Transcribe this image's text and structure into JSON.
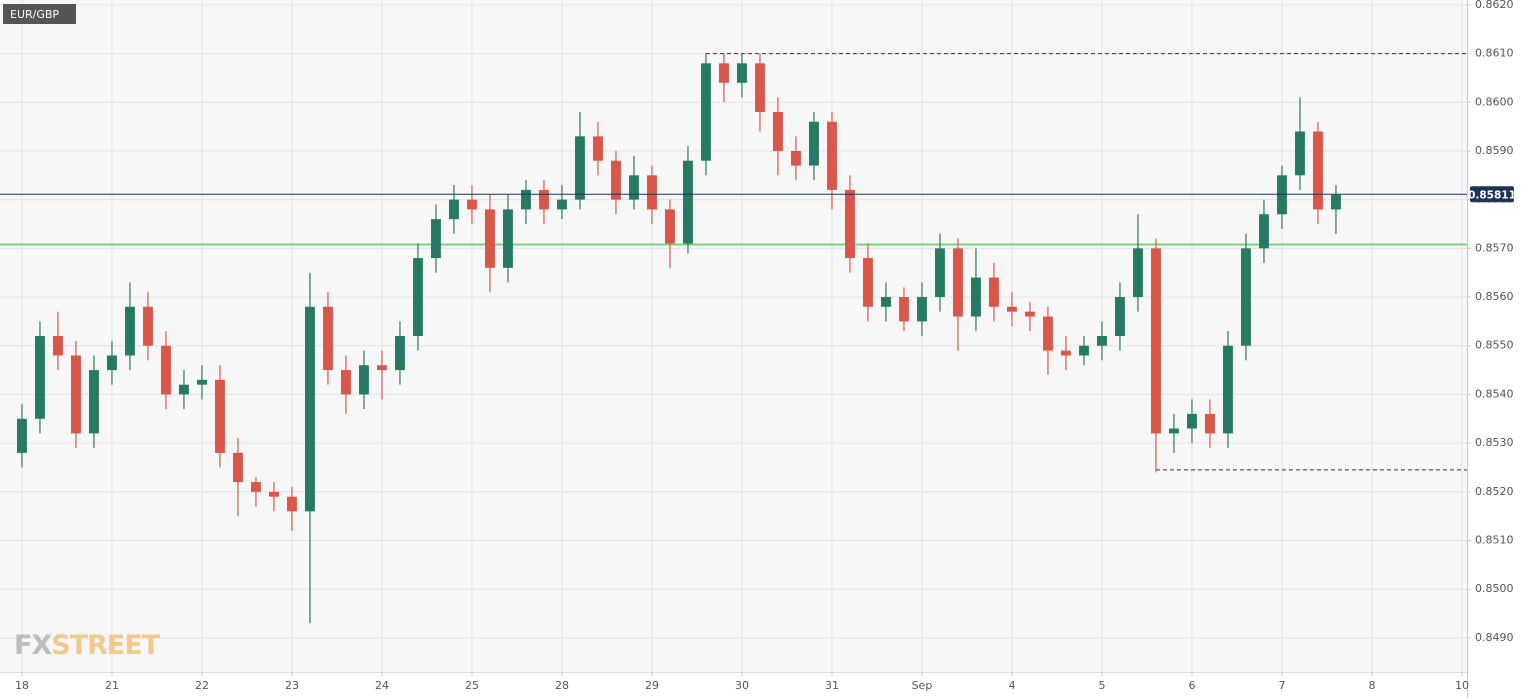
{
  "chart_data": {
    "type": "candlestick",
    "title": "EUR/GBP",
    "watermark": [
      "FX",
      "STREET"
    ],
    "x": [
      0,
      0.2,
      0.4,
      0.6,
      0.8,
      1,
      1.2,
      1.4,
      1.6,
      1.8,
      2,
      2.2,
      2.4,
      2.6,
      2.8,
      3,
      3.2,
      3.4,
      3.6,
      3.8,
      4,
      4.2,
      4.4,
      4.6,
      4.8,
      5,
      5.2,
      5.4,
      5.6,
      5.8,
      6,
      6.2,
      6.4,
      6.6,
      6.8,
      7,
      7.2,
      7.4,
      7.6,
      7.8,
      8,
      8.2,
      8.4,
      8.6,
      8.8,
      9,
      9.2,
      9.4,
      9.6,
      9.8,
      10,
      10.2,
      10.4,
      10.6,
      10.8,
      11,
      11.2,
      11.4,
      11.6,
      11.8,
      12,
      12.2,
      12.4,
      12.6,
      12.8,
      13,
      13.2,
      13.4,
      13.6,
      13.8,
      14,
      14.2,
      14.4,
      14.6
    ],
    "open": [
      0.8528,
      0.8535,
      0.8552,
      0.8548,
      0.8532,
      0.8545,
      0.8548,
      0.8558,
      0.855,
      0.854,
      0.8542,
      0.8543,
      0.8528,
      0.8522,
      0.852,
      0.8519,
      0.8516,
      0.8558,
      0.8545,
      0.854,
      0.8546,
      0.8545,
      0.8552,
      0.8568,
      0.8576,
      0.858,
      0.8578,
      0.8566,
      0.8578,
      0.8582,
      0.8578,
      0.858,
      0.8593,
      0.8588,
      0.858,
      0.8585,
      0.8578,
      0.8571,
      0.8588,
      0.8608,
      0.8604,
      0.8608,
      0.8598,
      0.859,
      0.8587,
      0.8596,
      0.8582,
      0.8568,
      0.8558,
      0.856,
      0.8555,
      0.856,
      0.857,
      0.8556,
      0.8564,
      0.8558,
      0.8557,
      0.8556,
      0.8549,
      0.8548,
      0.855,
      0.8552,
      0.856,
      0.857,
      0.8532,
      0.8533,
      0.8536,
      0.8532,
      0.855,
      0.857,
      0.8577,
      0.8585,
      0.8594,
      0.8578
    ],
    "high": [
      0.8538,
      0.8555,
      0.8557,
      0.8551,
      0.8548,
      0.8551,
      0.8563,
      0.8561,
      0.8553,
      0.8545,
      0.8546,
      0.8546,
      0.8531,
      0.8523,
      0.8522,
      0.8521,
      0.8565,
      0.8561,
      0.8548,
      0.8549,
      0.8549,
      0.8555,
      0.8571,
      0.8579,
      0.8583,
      0.8583,
      0.8581,
      0.8581,
      0.8584,
      0.8584,
      0.8583,
      0.8598,
      0.8596,
      0.859,
      0.8589,
      0.8587,
      0.858,
      0.8591,
      0.861,
      0.861,
      0.861,
      0.861,
      0.8601,
      0.8593,
      0.8598,
      0.8598,
      0.8585,
      0.8571,
      0.8563,
      0.8562,
      0.8563,
      0.8573,
      0.8572,
      0.857,
      0.8567,
      0.8561,
      0.8559,
      0.8558,
      0.8552,
      0.8552,
      0.8555,
      0.8563,
      0.8577,
      0.8572,
      0.8536,
      0.8539,
      0.8539,
      0.8553,
      0.8573,
      0.858,
      0.8587,
      0.8601,
      0.8596,
      0.8583
    ],
    "low": [
      0.8525,
      0.8532,
      0.8545,
      0.8529,
      0.8529,
      0.8542,
      0.8545,
      0.8547,
      0.8537,
      0.8537,
      0.8539,
      0.8525,
      0.8515,
      0.8517,
      0.8516,
      0.8512,
      0.8493,
      0.8542,
      0.8536,
      0.8537,
      0.8539,
      0.8542,
      0.8549,
      0.8565,
      0.8573,
      0.8575,
      0.8561,
      0.8563,
      0.8575,
      0.8575,
      0.8576,
      0.8578,
      0.8585,
      0.8577,
      0.8578,
      0.8575,
      0.8566,
      0.8569,
      0.8585,
      0.86,
      0.8601,
      0.8594,
      0.8585,
      0.8584,
      0.8584,
      0.8578,
      0.8565,
      0.8555,
      0.8555,
      0.8553,
      0.8552,
      0.8557,
      0.8549,
      0.8553,
      0.8555,
      0.8554,
      0.8553,
      0.8544,
      0.8545,
      0.8546,
      0.8547,
      0.8549,
      0.8557,
      0.8524,
      0.8528,
      0.853,
      0.8529,
      0.8529,
      0.8547,
      0.8567,
      0.8574,
      0.8582,
      0.8575,
      0.8573
    ],
    "close": [
      0.8535,
      0.8552,
      0.8548,
      0.8532,
      0.8545,
      0.8548,
      0.8558,
      0.855,
      0.854,
      0.8542,
      0.8543,
      0.8528,
      0.8522,
      0.852,
      0.8519,
      0.8516,
      0.8558,
      0.8545,
      0.854,
      0.8546,
      0.8545,
      0.8552,
      0.8568,
      0.8576,
      0.858,
      0.8578,
      0.8566,
      0.8578,
      0.8582,
      0.8578,
      0.858,
      0.8593,
      0.8588,
      0.858,
      0.8585,
      0.8578,
      0.8571,
      0.8588,
      0.8608,
      0.8604,
      0.8608,
      0.8598,
      0.859,
      0.8587,
      0.8596,
      0.8582,
      0.8568,
      0.8558,
      0.856,
      0.8555,
      0.856,
      0.857,
      0.8556,
      0.8564,
      0.8558,
      0.8557,
      0.8556,
      0.8549,
      0.8548,
      0.855,
      0.8552,
      0.856,
      0.857,
      0.8532,
      0.8533,
      0.8536,
      0.8532,
      0.855,
      0.857,
      0.8577,
      0.8585,
      0.8594,
      0.8578,
      0.8581
    ],
    "up_color": "#267a63",
    "down_color": "#d9574a",
    "xlim": [
      -0.244,
      16.056
    ],
    "xticks": [
      {
        "value": 0,
        "label": "18"
      },
      {
        "value": 1,
        "label": "21"
      },
      {
        "value": 2,
        "label": "22"
      },
      {
        "value": 3,
        "label": "23"
      },
      {
        "value": 4,
        "label": "24"
      },
      {
        "value": 5,
        "label": "25"
      },
      {
        "value": 6,
        "label": "28"
      },
      {
        "value": 7,
        "label": "29"
      },
      {
        "value": 8,
        "label": "30"
      },
      {
        "value": 9,
        "label": "31"
      },
      {
        "value": 10,
        "label": "Sep"
      },
      {
        "value": 11,
        "label": "4"
      },
      {
        "value": 12,
        "label": "5"
      },
      {
        "value": 13,
        "label": "6"
      },
      {
        "value": 14,
        "label": "7"
      },
      {
        "value": 15,
        "label": "8"
      },
      {
        "value": 16,
        "label": "10"
      }
    ],
    "ylim": [
      0.8483,
      0.8621
    ],
    "yticks": [
      {
        "value": 0.849,
        "label": "0.8490"
      },
      {
        "value": 0.85,
        "label": "0.8500"
      },
      {
        "value": 0.851,
        "label": "0.8510"
      },
      {
        "value": 0.852,
        "label": "0.8520"
      },
      {
        "value": 0.853,
        "label": "0.8530"
      },
      {
        "value": 0.854,
        "label": "0.8540"
      },
      {
        "value": 0.855,
        "label": "0.8550"
      },
      {
        "value": 0.856,
        "label": "0.8560"
      },
      {
        "value": 0.857,
        "label": "0.8570"
      },
      {
        "value": 0.858,
        "label": "0.8580"
      },
      {
        "value": 0.859,
        "label": "0.8590"
      },
      {
        "value": 0.86,
        "label": "0.8600"
      },
      {
        "value": 0.861,
        "label": "0.8610"
      },
      {
        "value": 0.862,
        "label": "0.8620"
      }
    ],
    "grid": true,
    "last_price": 0.85811,
    "last_price_color": "#1c3557",
    "support_level": 0.85708,
    "support_color": "#7ccf7c",
    "dashed_levels": [
      {
        "value": 0.861,
        "from": 7.6
      },
      {
        "value": 0.85245,
        "from": 12.6
      }
    ]
  }
}
